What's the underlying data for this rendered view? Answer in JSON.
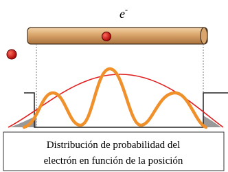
{
  "electron_label": {
    "base": "e",
    "superscript": "-"
  },
  "caption": {
    "lines": [
      "Distribución de probabilidad del",
      "electrón en función de la posición"
    ]
  }
}
